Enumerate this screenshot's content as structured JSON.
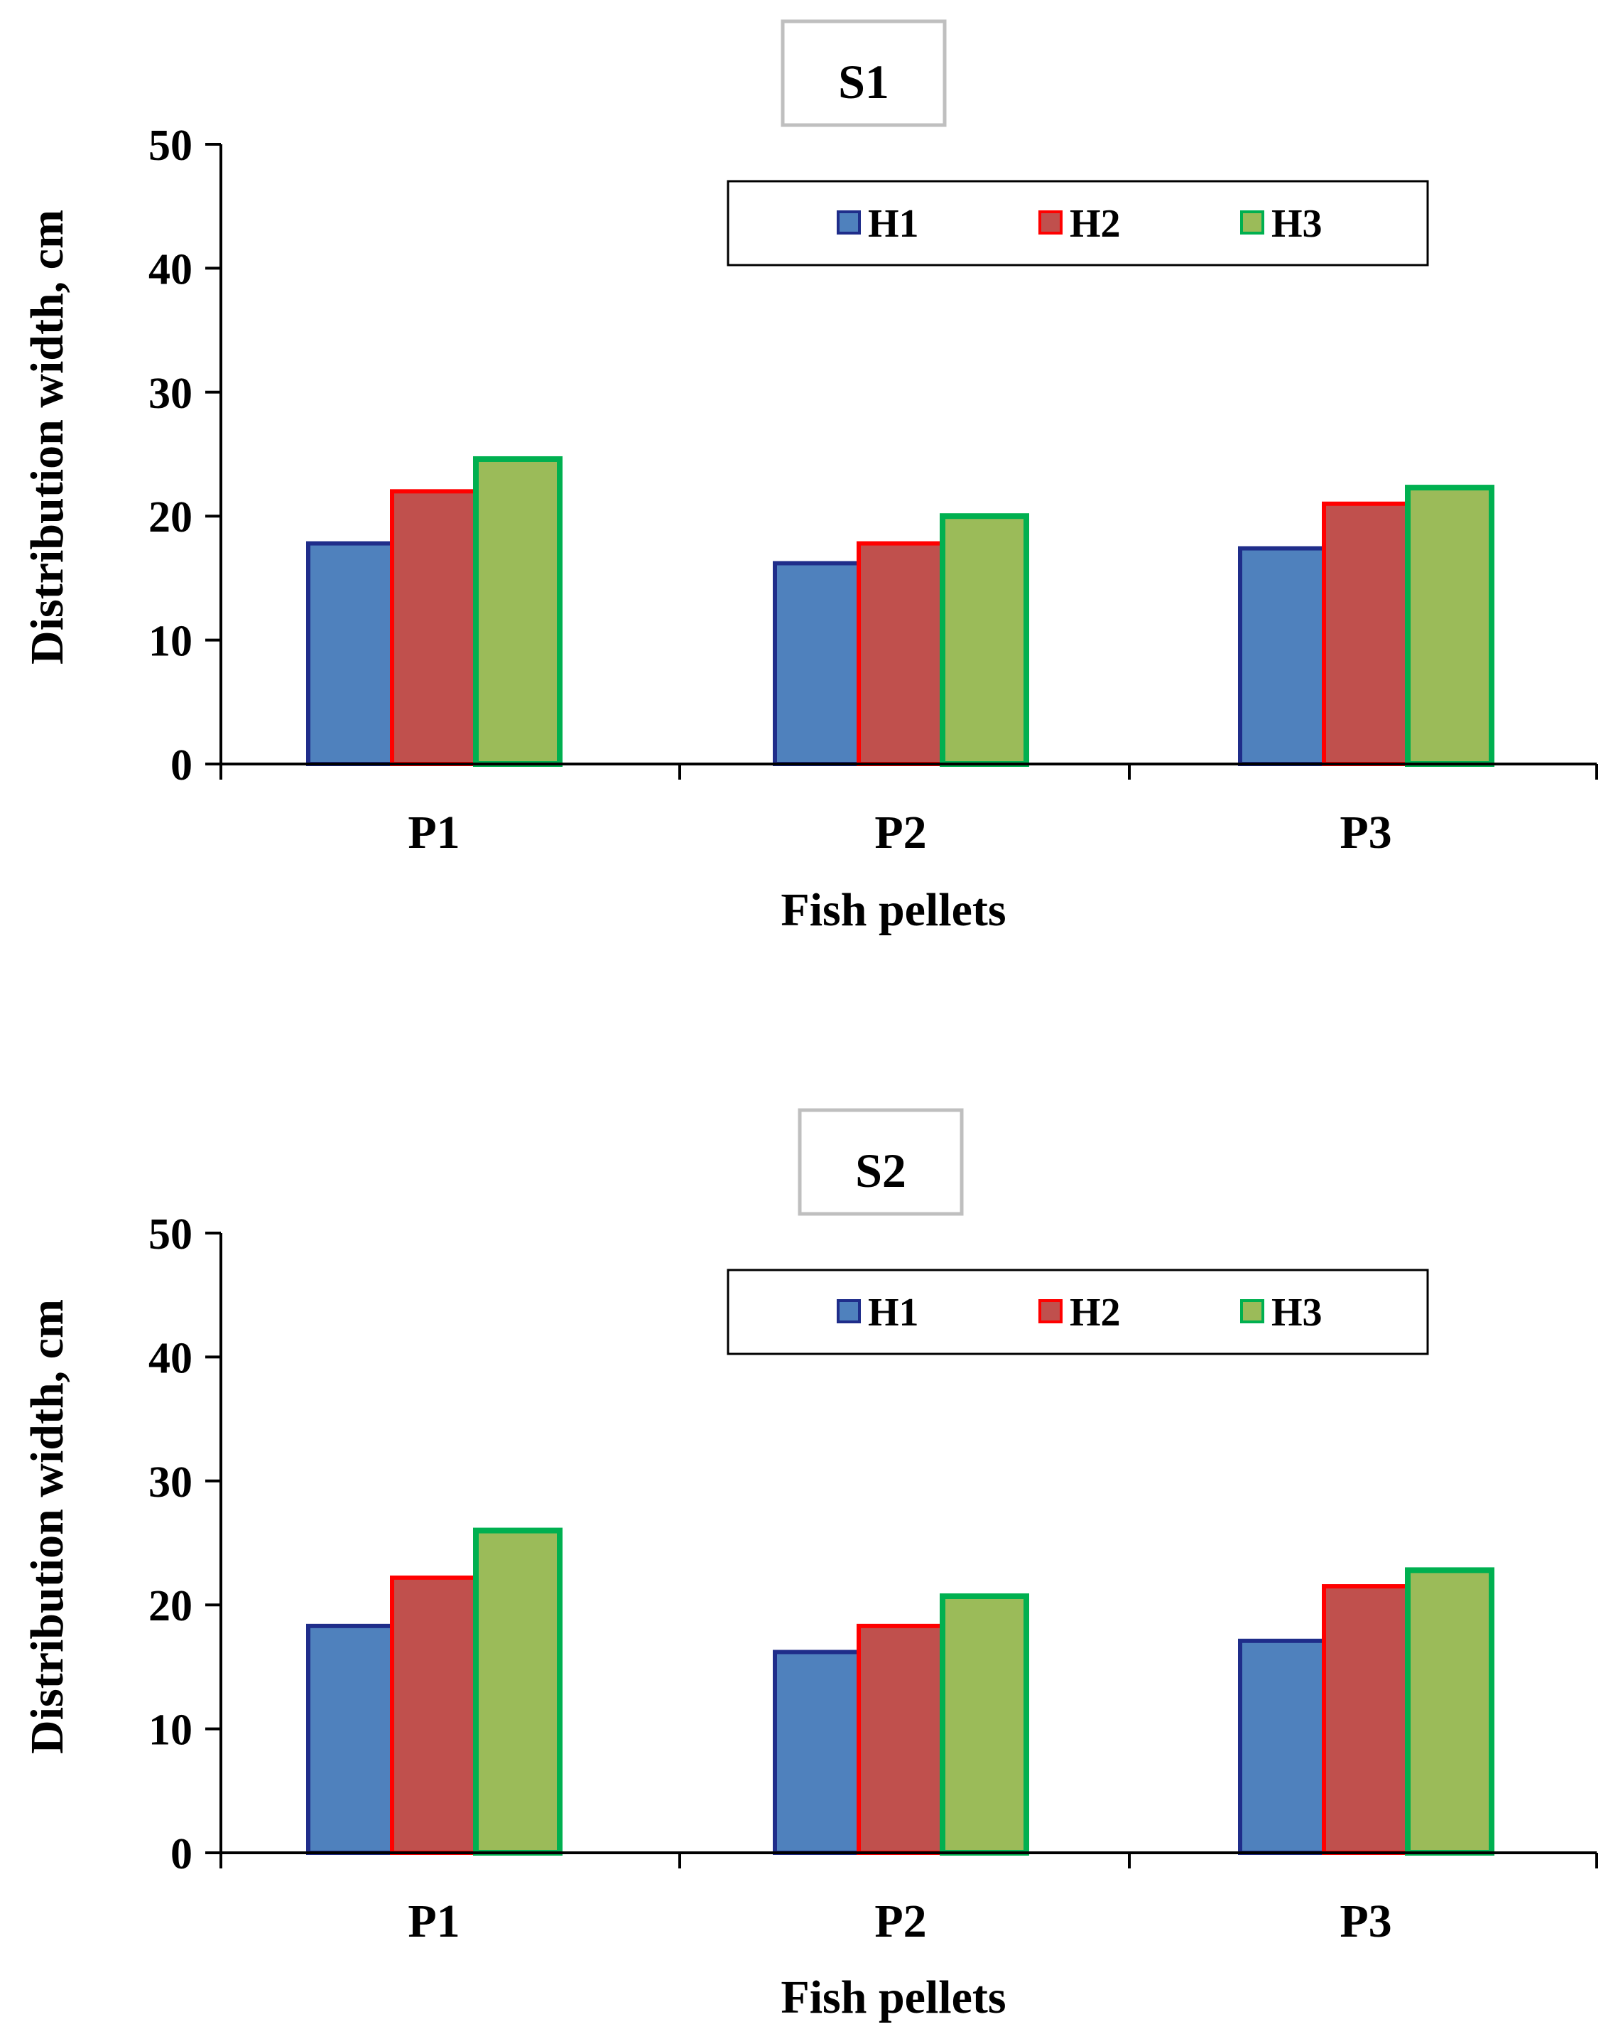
{
  "chart_data": [
    {
      "type": "bar",
      "title": "S1",
      "xlabel": "Fish pellets",
      "ylabel": "Distribution  width, cm",
      "ylim": [
        0,
        50
      ],
      "yticks": [
        "0",
        "10",
        "20",
        "30",
        "40",
        "50"
      ],
      "categories": [
        "P1",
        "P2",
        "P3"
      ],
      "legend_position": "top-right",
      "series": [
        {
          "name": "H1",
          "values": [
            17.8,
            16.2,
            17.4
          ],
          "fill": "#4F81BD",
          "stroke": "#1F2D8A"
        },
        {
          "name": "H2",
          "values": [
            22.0,
            17.8,
            21.0
          ],
          "fill": "#C0504D",
          "stroke": "#FF0000"
        },
        {
          "name": "H3",
          "values": [
            24.6,
            20.0,
            22.3
          ],
          "fill": "#9BBB59",
          "stroke": "#00B050"
        }
      ]
    },
    {
      "type": "bar",
      "title": "S2",
      "xlabel": "Fish pellets",
      "ylabel": "Distribution  width, cm",
      "ylim": [
        0,
        50
      ],
      "yticks": [
        "0",
        "10",
        "20",
        "30",
        "40",
        "50"
      ],
      "categories": [
        "P1",
        "P2",
        "P3"
      ],
      "legend_position": "top-right",
      "series": [
        {
          "name": "H1",
          "values": [
            18.3,
            16.2,
            17.1
          ],
          "fill": "#4F81BD",
          "stroke": "#1F2D8A"
        },
        {
          "name": "H2",
          "values": [
            22.2,
            18.3,
            21.5
          ],
          "fill": "#C0504D",
          "stroke": "#FF0000"
        },
        {
          "name": "H3",
          "values": [
            26.0,
            20.7,
            22.8
          ],
          "fill": "#9BBB59",
          "stroke": "#00B050"
        }
      ]
    }
  ]
}
